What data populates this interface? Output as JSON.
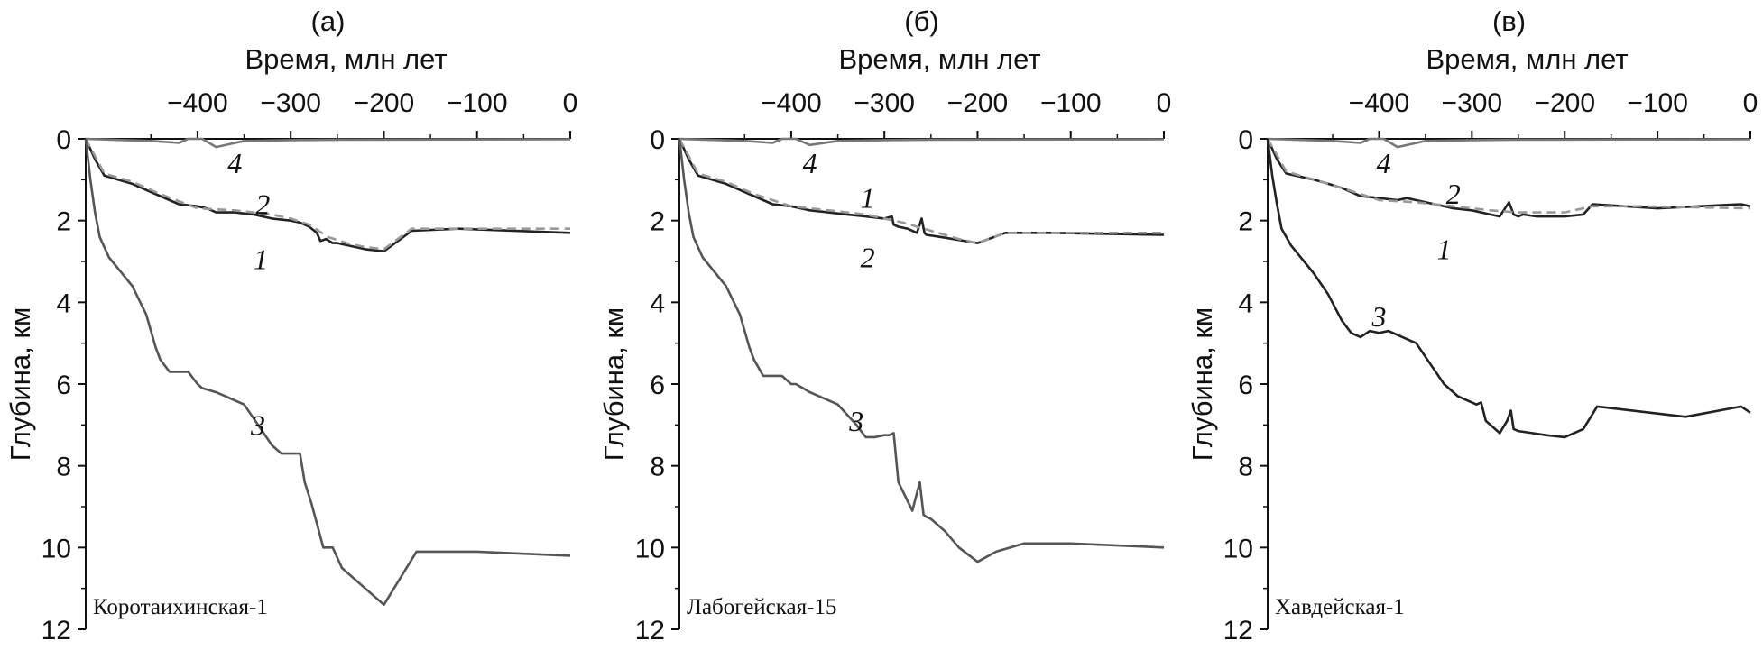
{
  "chart_data": [
    {
      "type": "line",
      "panel_label": "(а)",
      "xlabel": "Время, млн лет",
      "ylabel": "Глубина, км",
      "xlim": [
        -520,
        0
      ],
      "ylim": [
        12,
        0
      ],
      "xticks": [
        "−400",
        "−300",
        "−200",
        "−100",
        "0"
      ],
      "yticks": [
        "0",
        "2",
        "4",
        "6",
        "8",
        "10",
        "12"
      ],
      "well_name": "Коротаихинская-1",
      "series": [
        {
          "label": "4",
          "color": "#777777",
          "dashed": false,
          "x": [
            -520,
            -450,
            -420,
            -410,
            -395,
            -380,
            -350,
            -300,
            -250,
            0
          ],
          "y": [
            0,
            0.05,
            0.1,
            0,
            0,
            0.2,
            0.05,
            0.03,
            0.02,
            0.01
          ]
        },
        {
          "label": "1",
          "color": "#222222",
          "dashed": false,
          "x": [
            -520,
            -510,
            -500,
            -470,
            -440,
            -420,
            -400,
            -390,
            -380,
            -360,
            -340,
            -320,
            -300,
            -290,
            -280,
            -272,
            -268,
            -262,
            -255,
            -250,
            -240,
            -220,
            -200,
            -170,
            -120,
            0
          ],
          "y": [
            0,
            0.5,
            0.9,
            1.1,
            1.4,
            1.6,
            1.65,
            1.7,
            1.8,
            1.8,
            1.85,
            1.95,
            2.0,
            2.05,
            2.15,
            2.3,
            2.5,
            2.45,
            2.55,
            2.55,
            2.6,
            2.7,
            2.75,
            2.25,
            2.2,
            2.3
          ]
        },
        {
          "label": "2",
          "color": "#999999",
          "dashed": true,
          "x": [
            -520,
            -500,
            -470,
            -440,
            -400,
            -360,
            -320,
            -300,
            -280,
            -260,
            -240,
            -220,
            -200,
            -170,
            -120,
            0
          ],
          "y": [
            0,
            0.85,
            1.05,
            1.35,
            1.7,
            1.75,
            1.85,
            1.95,
            2.1,
            2.4,
            2.55,
            2.65,
            2.7,
            2.2,
            2.2,
            2.2
          ]
        },
        {
          "label": "3",
          "color": "#555555",
          "dashed": false,
          "x": [
            -520,
            -515,
            -510,
            -505,
            -495,
            -470,
            -455,
            -445,
            -440,
            -430,
            -420,
            -410,
            -400,
            -395,
            -380,
            -370,
            -350,
            -320,
            -310,
            -295,
            -290,
            -285,
            -278,
            -272,
            -265,
            -255,
            -245,
            -220,
            -200,
            -165,
            -100,
            0
          ],
          "y": [
            0,
            1.0,
            1.8,
            2.4,
            2.9,
            3.6,
            4.3,
            5.1,
            5.4,
            5.7,
            5.7,
            5.7,
            6.0,
            6.1,
            6.2,
            6.3,
            6.5,
            7.5,
            7.7,
            7.7,
            7.7,
            8.4,
            8.9,
            9.4,
            10.0,
            10.0,
            10.5,
            11.0,
            11.4,
            10.1,
            10.1,
            10.2
          ]
        }
      ],
      "curve_labels": [
        {
          "text": "4",
          "x": -360,
          "y": 0.6
        },
        {
          "text": "2",
          "x": -330,
          "y": 1.6
        },
        {
          "text": "1",
          "x": -332,
          "y": 2.95
        },
        {
          "text": "3",
          "x": -335,
          "y": 7.0
        }
      ]
    },
    {
      "type": "line",
      "panel_label": "(б)",
      "xlabel": "Время, млн лет",
      "ylabel": "Глубина, км",
      "xlim": [
        -520,
        0
      ],
      "ylim": [
        12,
        0
      ],
      "xticks": [
        "−400",
        "−300",
        "−200",
        "−100",
        "0"
      ],
      "yticks": [
        "0",
        "2",
        "4",
        "6",
        "8",
        "10",
        "12"
      ],
      "well_name": "Лабогейская-15",
      "series": [
        {
          "label": "4",
          "color": "#777777",
          "dashed": false,
          "x": [
            -520,
            -450,
            -420,
            -410,
            -395,
            -380,
            -350,
            -300,
            -250,
            0
          ],
          "y": [
            0,
            0.05,
            0.1,
            0,
            0,
            0.15,
            0.05,
            0.03,
            0.02,
            0.01
          ]
        },
        {
          "label": "1",
          "color": "#222222",
          "dashed": false,
          "x": [
            -520,
            -510,
            -500,
            -470,
            -440,
            -420,
            -400,
            -380,
            -360,
            -340,
            -320,
            -300,
            -292,
            -290,
            -285,
            -275,
            -265,
            -260,
            -257,
            -255,
            -240,
            -200,
            -170,
            -120,
            0
          ],
          "y": [
            0,
            0.5,
            0.9,
            1.1,
            1.4,
            1.6,
            1.65,
            1.75,
            1.8,
            1.85,
            1.9,
            1.95,
            1.9,
            2.1,
            2.15,
            2.2,
            2.3,
            1.95,
            2.3,
            2.35,
            2.4,
            2.55,
            2.3,
            2.3,
            2.35
          ]
        },
        {
          "label": "2",
          "color": "#999999",
          "dashed": true,
          "x": [
            -520,
            -500,
            -470,
            -440,
            -400,
            -360,
            -320,
            -280,
            -250,
            -220,
            -200,
            -170,
            -120,
            0
          ],
          "y": [
            0,
            0.85,
            1.05,
            1.35,
            1.65,
            1.75,
            1.85,
            2.05,
            2.25,
            2.45,
            2.55,
            2.3,
            2.3,
            2.3
          ]
        },
        {
          "label": "3",
          "color": "#555555",
          "dashed": false,
          "x": [
            -520,
            -515,
            -510,
            -505,
            -495,
            -470,
            -455,
            -445,
            -440,
            -430,
            -420,
            -410,
            -400,
            -395,
            -380,
            -370,
            -350,
            -330,
            -320,
            -310,
            -300,
            -295,
            -290,
            -285,
            -270,
            -262,
            -258,
            -255,
            -250,
            -235,
            -220,
            -200,
            -180,
            -150,
            -100,
            0
          ],
          "y": [
            0,
            1.0,
            1.8,
            2.4,
            2.9,
            3.6,
            4.3,
            5.1,
            5.4,
            5.8,
            5.8,
            5.8,
            6.0,
            6.0,
            6.2,
            6.3,
            6.5,
            7.0,
            7.3,
            7.3,
            7.25,
            7.25,
            7.2,
            8.4,
            9.1,
            8.4,
            9.2,
            9.25,
            9.3,
            9.6,
            10.0,
            10.35,
            10.1,
            9.9,
            9.9,
            10.0
          ]
        }
      ],
      "curve_labels": [
        {
          "text": "4",
          "x": -380,
          "y": 0.6
        },
        {
          "text": "1",
          "x": -318,
          "y": 1.45
        },
        {
          "text": "2",
          "x": -318,
          "y": 2.9
        },
        {
          "text": "3",
          "x": -330,
          "y": 6.9
        }
      ]
    },
    {
      "type": "line",
      "panel_label": "(в)",
      "xlabel": "Время, млн лет",
      "ylabel": "Глубина, км",
      "xlim": [
        -520,
        0
      ],
      "ylim": [
        12,
        0
      ],
      "xticks": [
        "−400",
        "−300",
        "−200",
        "−100",
        "0"
      ],
      "yticks": [
        "0",
        "2",
        "4",
        "6",
        "8",
        "10",
        "12"
      ],
      "well_name": "Хавдейская-1",
      "series": [
        {
          "label": "4",
          "color": "#777777",
          "dashed": false,
          "x": [
            -520,
            -450,
            -420,
            -410,
            -395,
            -380,
            -350,
            -300,
            -250,
            0
          ],
          "y": [
            0,
            0.05,
            0.1,
            0,
            0,
            0.2,
            0.05,
            0.03,
            0.02,
            0.01
          ]
        },
        {
          "label": "1",
          "color": "#222222",
          "dashed": false,
          "x": [
            -520,
            -510,
            -500,
            -470,
            -440,
            -420,
            -400,
            -380,
            -370,
            -360,
            -340,
            -320,
            -300,
            -280,
            -270,
            -260,
            -255,
            -250,
            -245,
            -230,
            -200,
            -180,
            -170,
            -100,
            -10,
            0
          ],
          "y": [
            0,
            0.5,
            0.85,
            1.0,
            1.2,
            1.4,
            1.45,
            1.5,
            1.45,
            1.5,
            1.6,
            1.7,
            1.75,
            1.85,
            1.9,
            1.55,
            1.85,
            1.9,
            1.85,
            1.9,
            1.9,
            1.85,
            1.6,
            1.7,
            1.6,
            1.65
          ]
        },
        {
          "label": "2",
          "color": "#999999",
          "dashed": true,
          "x": [
            -520,
            -500,
            -470,
            -440,
            -400,
            -360,
            -320,
            -280,
            -250,
            -220,
            -200,
            -170,
            -120,
            0
          ],
          "y": [
            0,
            0.8,
            1.0,
            1.2,
            1.5,
            1.55,
            1.65,
            1.75,
            1.8,
            1.8,
            1.8,
            1.65,
            1.65,
            1.7
          ]
        },
        {
          "label": "3",
          "color": "#222222",
          "dashed": false,
          "x": [
            -520,
            -515,
            -510,
            -505,
            -495,
            -470,
            -455,
            -440,
            -430,
            -420,
            -410,
            -400,
            -390,
            -380,
            -360,
            -345,
            -330,
            -315,
            -300,
            -295,
            -290,
            -285,
            -270,
            -262,
            -258,
            -255,
            -250,
            -235,
            -220,
            -200,
            -180,
            -165,
            -70,
            -10,
            0
          ],
          "y": [
            0,
            0.9,
            1.6,
            2.2,
            2.6,
            3.3,
            3.8,
            4.45,
            4.75,
            4.85,
            4.7,
            4.75,
            4.7,
            4.8,
            5.0,
            5.5,
            6.0,
            6.3,
            6.45,
            6.5,
            6.45,
            6.9,
            7.2,
            6.9,
            6.65,
            7.1,
            7.15,
            7.2,
            7.25,
            7.3,
            7.1,
            6.55,
            6.8,
            6.55,
            6.7
          ]
        }
      ],
      "curve_labels": [
        {
          "text": "4",
          "x": -395,
          "y": 0.6
        },
        {
          "text": "2",
          "x": -320,
          "y": 1.35
        },
        {
          "text": "1",
          "x": -330,
          "y": 2.7
        },
        {
          "text": "3",
          "x": -400,
          "y": 4.35
        }
      ]
    }
  ]
}
